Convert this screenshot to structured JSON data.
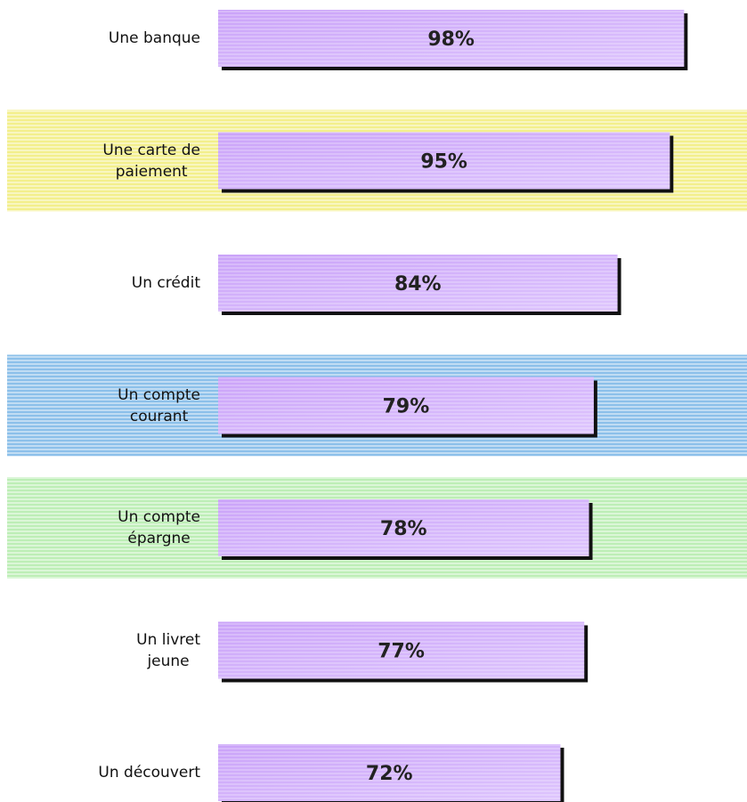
{
  "chart_data": {
    "type": "barh",
    "categories": [
      "Une banque",
      "Une carte de\npaiement",
      "Un crédit",
      "Un compte\ncourant",
      "Un compte\népargne",
      "Un livret\njeune",
      "Un découvert"
    ],
    "values": [
      98,
      95,
      84,
      79,
      78,
      77,
      72
    ],
    "value_labels": [
      "98%",
      "95%",
      "84%",
      "79%",
      "78%",
      "77%",
      "72%"
    ],
    "color": "#d2b0fb",
    "highlights": [
      null,
      "#f3ef8c",
      null,
      "#8cc0ea",
      "#bdeeb6",
      null,
      null
    ],
    "xlim": [
      0,
      100
    ]
  }
}
